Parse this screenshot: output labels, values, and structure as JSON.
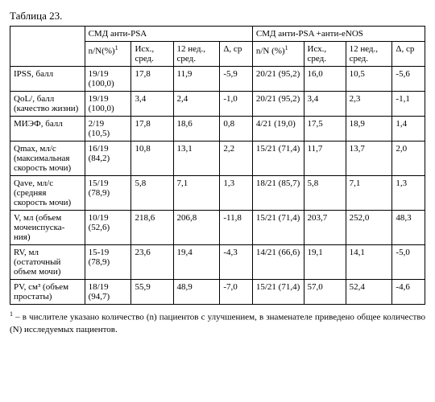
{
  "title": "Таблица 23.",
  "group1_header": "СМД анти-PSA",
  "group2_header": "СМД анти-PSA +анти-eNOS",
  "col_labels": {
    "nN1": "n/N(%)",
    "sup1": "1",
    "ish": "Исх., сред.",
    "wk12": "12 нед., сред.",
    "delta": "Δ, ср",
    "nN2": "n/N (%)",
    "sup2": "1",
    "ish2": "Исх., сред.",
    "wk12_2": "12 нед., сред.",
    "delta2": "Δ, ср"
  },
  "rows": [
    {
      "label": "IPSS, балл",
      "n1": "19/19 (100,0)",
      "a1": "17,8",
      "b1": "11,9",
      "d1": "-5,9",
      "n2": "20/21 (95,2)",
      "a2": "16,0",
      "b2": "10,5",
      "d2": "-5,6"
    },
    {
      "label": "QoL/, балл (качество жизни)",
      "n1": "19/19 (100,0)",
      "a1": "3,4",
      "b1": "2,4",
      "d1": "-1,0",
      "n2": "20/21 (95,2)",
      "a2": "3,4",
      "b2": "2,3",
      "d2": "-1,1"
    },
    {
      "label": "МИЭФ, балл",
      "n1": "2/19 (10,5)",
      "a1": "17,8",
      "b1": "18,6",
      "d1": "0,8",
      "n2": "4/21 (19,0)",
      "a2": "17,5",
      "b2": "18,9",
      "d2": "1,4"
    },
    {
      "label": "Qmax, мл/с (максимальная скорость мочи)",
      "n1": "16/19 (84,2)",
      "a1": "10,8",
      "b1": "13,1",
      "d1": "2,2",
      "n2": "15/21 (71,4)",
      "a2": "11,7",
      "b2": "13,7",
      "d2": "2,0"
    },
    {
      "label": "Qave, мл/с (средняя скорость мочи)",
      "n1": "15/19 (78,9)",
      "a1": "5,8",
      "b1": "7,1",
      "d1": "1,3",
      "n2": "18/21 (85,7)",
      "a2": "5,8",
      "b2": "7,1",
      "d2": "1,3"
    },
    {
      "label": "V, мл (объем мочеиспуска-ния)",
      "n1": "10/19 (52,6)",
      "a1": "218,6",
      "b1": "206,8",
      "d1": "-11,8",
      "n2": "15/21 (71,4)",
      "a2": "203,7",
      "b2": "252,0",
      "d2": "48,3"
    },
    {
      "label": "RV, мл (остаточный объем мочи)",
      "n1": "15-19 (78,9)",
      "a1": "23,6",
      "b1": "19,4",
      "d1": "-4,3",
      "n2": "14/21 (66,6)",
      "a2": "19,1",
      "b2": "14,1",
      "d2": "-5,0"
    },
    {
      "label": "PV, см³ (объем простаты)",
      "n1": "18/19 (94,7)",
      "a1": "55,9",
      "b1": "48,9",
      "d1": "-7,0",
      "n2": "15/21 (71,4)",
      "a2": "57,0",
      "b2": "52,4",
      "d2": "-4,6"
    }
  ],
  "footnote_sup": "1",
  "footnote": " – в числителе указано количество (n) пациентов с улучшением, в знаменателе приведено общее количество (N) исследуемых пациентов."
}
